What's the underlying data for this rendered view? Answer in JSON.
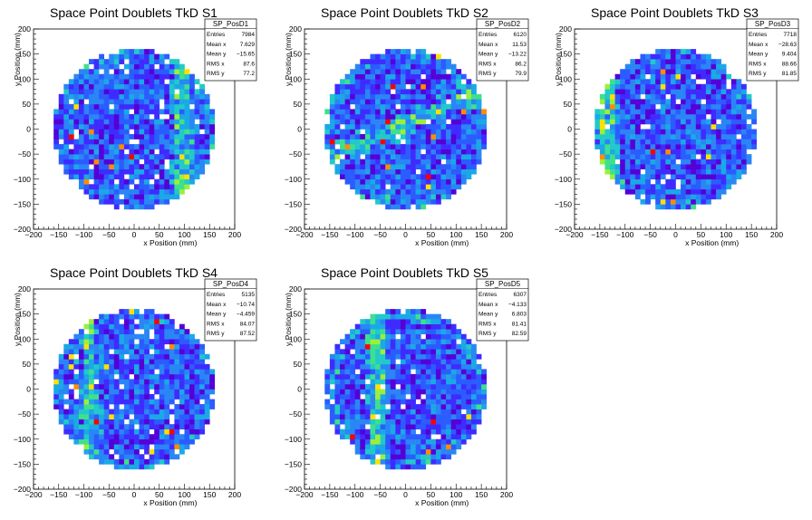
{
  "colors": {
    "palette": [
      "#5400d6",
      "#3f2bff",
      "#2b5cff",
      "#2a86f5",
      "#1aa9e6",
      "#22c9c9",
      "#3fe08c",
      "#9bf03a",
      "#ffe100",
      "#ff8c00",
      "#ff0000"
    ],
    "background": "#ffffff"
  },
  "chart_data": [
    {
      "type": "heatmap",
      "title": "Space Point Doublets TkD S1",
      "xlabel": "x Position (mm)",
      "ylabel": "y Position (mm)",
      "xlim": [
        -200,
        200
      ],
      "ylim": [
        -200,
        200
      ],
      "xticks": [
        -200,
        -150,
        -100,
        -50,
        0,
        50,
        100,
        150,
        200
      ],
      "yticks": [
        -200,
        -150,
        -100,
        -50,
        0,
        50,
        100,
        150,
        200
      ],
      "stats": {
        "name": "SP_PosD1",
        "rows": [
          {
            "label": "Entries",
            "value": "7984"
          },
          {
            "label": "Mean x",
            "value": "7.629"
          },
          {
            "label": "Mean y",
            "value": "−15.65"
          },
          {
            "label": "RMS x",
            "value": "87.6"
          },
          {
            "label": "RMS y",
            "value": "77.2"
          }
        ]
      },
      "disk_radius": 160,
      "hot_band": {
        "orientation": "vertical",
        "position": 95
      }
    },
    {
      "type": "heatmap",
      "title": "Space Point Doublets TkD S2",
      "xlabel": "x Position (mm)",
      "ylabel": "y Position (mm)",
      "xlim": [
        -200,
        200
      ],
      "ylim": [
        -200,
        200
      ],
      "xticks": [
        -200,
        -150,
        -100,
        -50,
        0,
        50,
        100,
        150,
        200
      ],
      "yticks": [
        -200,
        -150,
        -100,
        -50,
        0,
        50,
        100,
        150,
        200
      ],
      "stats": {
        "name": "SP_PosD2",
        "rows": [
          {
            "label": "Entries",
            "value": "6120"
          },
          {
            "label": "Mean x",
            "value": "11.53"
          },
          {
            "label": "Mean y",
            "value": "−13.22"
          },
          {
            "label": "RMS x",
            "value": "86.2"
          },
          {
            "label": "RMS y",
            "value": "79.9"
          }
        ]
      },
      "disk_radius": 160,
      "hot_band": {
        "orientation": "diagonal",
        "position": 0
      }
    },
    {
      "type": "heatmap",
      "title": "Space Point Doublets TkD S3",
      "xlabel": "x Position (mm)",
      "ylabel": "y Position (mm)",
      "xlim": [
        -200,
        200
      ],
      "ylim": [
        -200,
        200
      ],
      "xticks": [
        -200,
        -150,
        -100,
        -50,
        0,
        50,
        100,
        150,
        200
      ],
      "yticks": [
        -200,
        -150,
        -100,
        -50,
        0,
        50,
        100,
        150,
        200
      ],
      "stats": {
        "name": "SP_PosD3",
        "rows": [
          {
            "label": "Entries",
            "value": "7718"
          },
          {
            "label": "Mean x",
            "value": "−28.63"
          },
          {
            "label": "Mean y",
            "value": "9.404"
          },
          {
            "label": "RMS x",
            "value": "88.66"
          },
          {
            "label": "RMS y",
            "value": "81.85"
          }
        ]
      },
      "disk_radius": 160,
      "hot_band": {
        "orientation": "vertical",
        "position": -135
      }
    },
    {
      "type": "heatmap",
      "title": "Space Point Doublets TkD S4",
      "xlabel": "x Position (mm)",
      "ylabel": "y Position (mm)",
      "xlim": [
        -200,
        200
      ],
      "ylim": [
        -200,
        200
      ],
      "xticks": [
        -200,
        -150,
        -100,
        -50,
        0,
        50,
        100,
        150,
        200
      ],
      "yticks": [
        -200,
        -150,
        -100,
        -50,
        0,
        50,
        100,
        150,
        200
      ],
      "stats": {
        "name": "SP_PosD4",
        "rows": [
          {
            "label": "Entries",
            "value": "5135"
          },
          {
            "label": "Mean x",
            "value": "−10.74"
          },
          {
            "label": "Mean y",
            "value": "−4.459"
          },
          {
            "label": "RMS x",
            "value": "84.07"
          },
          {
            "label": "RMS y",
            "value": "87.52"
          }
        ]
      },
      "disk_radius": 160,
      "hot_band": {
        "orientation": "vertical",
        "position": -90
      }
    },
    {
      "type": "heatmap",
      "title": "Space Point Doublets TkD S5",
      "xlabel": "x Position (mm)",
      "ylabel": "y Position (mm)",
      "xlim": [
        -200,
        200
      ],
      "ylim": [
        -200,
        200
      ],
      "xticks": [
        -200,
        -150,
        -100,
        -50,
        0,
        50,
        100,
        150,
        200
      ],
      "yticks": [
        -200,
        -150,
        -100,
        -50,
        0,
        50,
        100,
        150,
        200
      ],
      "stats": {
        "name": "SP_PosD5",
        "rows": [
          {
            "label": "Entries",
            "value": "6307"
          },
          {
            "label": "Mean x",
            "value": "−4.133"
          },
          {
            "label": "Mean y",
            "value": "6.803"
          },
          {
            "label": "RMS x",
            "value": "81.41"
          },
          {
            "label": "RMS y",
            "value": "82.59"
          }
        ]
      },
      "disk_radius": 160,
      "hot_band": {
        "orientation": "vertical",
        "position": -55
      }
    }
  ]
}
